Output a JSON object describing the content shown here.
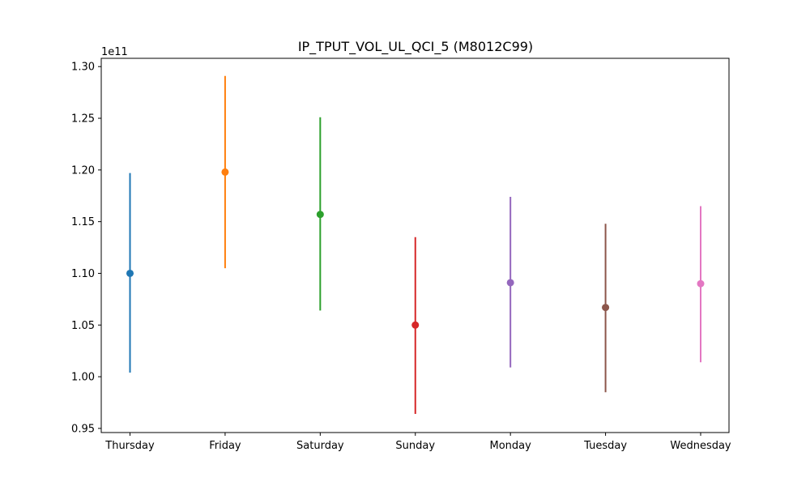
{
  "chart_data": {
    "type": "scatter",
    "title": "IP_TPUT_VOL_UL_QCI_5 (M8012C99)",
    "xlabel": "",
    "ylabel": "",
    "y_offset_label": "1e11",
    "y_scale": 100000000000.0,
    "ylim": [
      0.946,
      1.308
    ],
    "y_ticks": [
      0.95,
      1.0,
      1.05,
      1.1,
      1.15,
      1.2,
      1.25,
      1.3
    ],
    "y_tick_labels": [
      "0.95",
      "1.00",
      "1.05",
      "1.10",
      "1.15",
      "1.20",
      "1.25",
      "1.30"
    ],
    "grid": false,
    "legend": "none",
    "categories": [
      "Thursday",
      "Friday",
      "Saturday",
      "Sunday",
      "Monday",
      "Tuesday",
      "Wednesday"
    ],
    "points": [
      {
        "category": "Thursday",
        "mean": 1.1,
        "lower": 1.004,
        "upper": 1.197,
        "color": "#1f77b4"
      },
      {
        "category": "Friday",
        "mean": 1.198,
        "lower": 1.105,
        "upper": 1.291,
        "color": "#ff7f0e"
      },
      {
        "category": "Saturday",
        "mean": 1.157,
        "lower": 1.064,
        "upper": 1.251,
        "color": "#2ca02c"
      },
      {
        "category": "Sunday",
        "mean": 1.05,
        "lower": 0.964,
        "upper": 1.135,
        "color": "#d62728"
      },
      {
        "category": "Monday",
        "mean": 1.091,
        "lower": 1.009,
        "upper": 1.174,
        "color": "#9467bd"
      },
      {
        "category": "Tuesday",
        "mean": 1.067,
        "lower": 0.985,
        "upper": 1.148,
        "color": "#8c564b"
      },
      {
        "category": "Wednesday",
        "mean": 1.09,
        "lower": 1.014,
        "upper": 1.165,
        "color": "#e377c2"
      }
    ]
  }
}
